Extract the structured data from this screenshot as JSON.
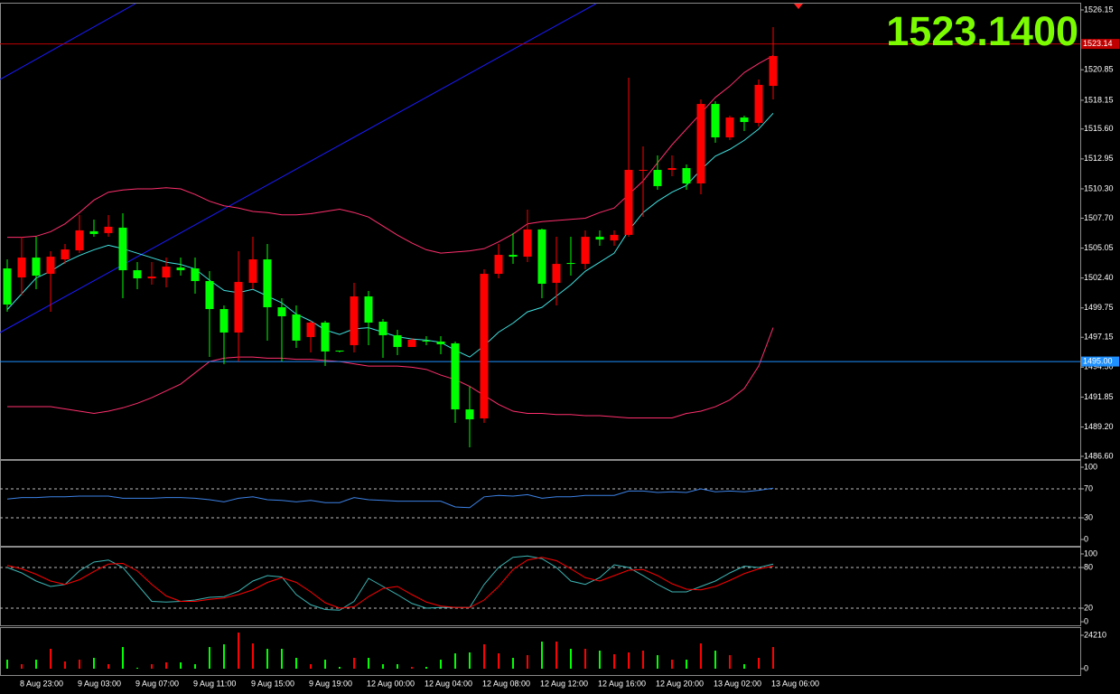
{
  "chart_data": [
    {
      "type": "candlestick",
      "categories": [
        null,
        "8 Aug 23:00",
        null,
        null,
        null,
        "9 Aug 03:00",
        null,
        null,
        null,
        "9 Aug 07:00",
        null,
        null,
        null,
        "9 Aug 11:00",
        null,
        null,
        null,
        "9 Aug 15:00",
        null,
        null,
        null,
        "9 Aug 19:00",
        null,
        null,
        null,
        "12 Aug 00:00",
        null,
        null,
        null,
        "12 Aug 04:00",
        null,
        null,
        null,
        "12 Aug 08:00",
        null,
        null,
        null,
        "12 Aug 12:00",
        null,
        null,
        null,
        "12 Aug 16:00",
        null,
        null,
        null,
        "12 Aug 20:00",
        null,
        null,
        null,
        "13 Aug 02:00",
        null,
        null,
        null,
        "13 Aug 06:00"
      ],
      "open": [
        1503.25,
        1502.45,
        1504.21,
        1502.77,
        1504.05,
        1504.85,
        1506.54,
        1506.38,
        1506.86,
        1503.09,
        1502.37,
        1502.45,
        1503.33,
        1503.25,
        1502.13,
        1499.65,
        1497.57,
        1501.97,
        1504.05,
        1499.81,
        1499.17,
        1497.17,
        1498.45,
        1495.97,
        1496.45,
        1500.77,
        1498.53,
        1497.33,
        1496.29,
        1496.85,
        1496.77,
        1496.61,
        1490.76,
        1489.96,
        1502.77,
        1504.45,
        1504.29,
        1506.7,
        1501.97,
        1503.73,
        1503.65,
        1506.05,
        1505.73,
        1506.22,
        1511.9,
        1511.98,
        1511.98,
        1512.14,
        1510.78,
        1517.82,
        1514.86,
        1516.62,
        1516.14,
        1519.42
      ],
      "high": [
        1504.05,
        1506.05,
        1506.05,
        1504.77,
        1505.41,
        1507.98,
        1507.58,
        1507.98,
        1508.14,
        1503.81,
        1503.81,
        1504.21,
        1504.21,
        1504.21,
        1503.01,
        1499.97,
        1504.77,
        1506.05,
        1505.41,
        1500.61,
        1499.97,
        1498.61,
        1498.61,
        1495.97,
        1501.97,
        1501.25,
        1498.77,
        1497.81,
        1497.09,
        1497.25,
        1497.25,
        1496.77,
        1492.77,
        1503.17,
        1505.41,
        1506.38,
        1508.46,
        1506.78,
        1506.05,
        1506.05,
        1506.62,
        1506.62,
        1506.62,
        1520.15,
        1514.06,
        1513.26,
        1513.26,
        1512.46,
        1518.22,
        1518.06,
        1516.78,
        1516.78,
        1519.99,
        1524.63
      ],
      "low": [
        1499.41,
        1500.85,
        1501.41,
        1499.41,
        1503.65,
        1504.61,
        1506.05,
        1506.05,
        1500.61,
        1501.41,
        1501.81,
        1501.57,
        1502.61,
        1501.01,
        1495.41,
        1494.77,
        1495.01,
        1501.41,
        1496.85,
        1495.01,
        1496.21,
        1495.81,
        1494.61,
        1495.81,
        1495.81,
        1496.45,
        1495.33,
        1495.57,
        1496.45,
        1496.45,
        1495.65,
        1489.56,
        1487.4,
        1489.56,
        1502.37,
        1503.65,
        1503.81,
        1500.61,
        1499.97,
        1502.61,
        1503.17,
        1505.25,
        1505.25,
        1506.05,
        1507.82,
        1510.22,
        1511.42,
        1510.22,
        1509.82,
        1514.38,
        1514.62,
        1515.42,
        1515.82,
        1518.22
      ],
      "close": [
        1500.05,
        1504.21,
        1502.61,
        1504.29,
        1504.93,
        1506.62,
        1506.3,
        1506.94,
        1503.09,
        1502.37,
        1502.53,
        1503.41,
        1503.09,
        1502.13,
        1499.65,
        1497.57,
        1502.05,
        1504.05,
        1499.81,
        1499.01,
        1496.85,
        1498.45,
        1495.89,
        1495.89,
        1500.77,
        1498.45,
        1497.33,
        1496.29,
        1496.93,
        1496.77,
        1496.53,
        1490.76,
        1489.88,
        1502.77,
        1504.45,
        1504.29,
        1506.7,
        1501.89,
        1503.65,
        1503.65,
        1506.05,
        1505.81,
        1506.22,
        1511.98,
        1511.98,
        1510.54,
        1512.14,
        1510.78,
        1517.82,
        1514.86,
        1516.62,
        1516.22,
        1519.51,
        1522.07
      ],
      "up_color": "#ff0000",
      "down_color": "#00ff00",
      "overlays": [
        {
          "color": "#ff2f6e",
          "values": [
            1506.0,
            1506.0,
            1506.1,
            1506.5,
            1507.2,
            1508.2,
            1509.3,
            1510.0,
            1510.2,
            1510.3,
            1510.3,
            1510.4,
            1510.3,
            1509.8,
            1509.2,
            1508.8,
            1508.6,
            1508.3,
            1508.2,
            1508.0,
            1508.0,
            1508.1,
            1508.3,
            1508.5,
            1508.2,
            1507.8,
            1507.0,
            1506.2,
            1505.5,
            1504.9,
            1504.6,
            1504.7,
            1504.8,
            1505.0,
            1505.6,
            1506.3,
            1507.2,
            1507.4,
            1507.5,
            1507.6,
            1507.7,
            1508.2,
            1508.6,
            1509.8,
            1511.0,
            1512.6,
            1514.2,
            1515.6,
            1517.0,
            1518.4,
            1519.4,
            1520.6,
            1521.4,
            1522.1
          ]
        },
        {
          "color": "#ff2f6e",
          "values": [
            1491.0,
            1491.0,
            1491.0,
            1491.0,
            1490.8,
            1490.6,
            1490.4,
            1490.6,
            1490.9,
            1491.3,
            1491.8,
            1492.4,
            1493.0,
            1494.0,
            1495.0,
            1495.3,
            1495.4,
            1495.4,
            1495.3,
            1495.3,
            1495.2,
            1495.2,
            1495.1,
            1495.0,
            1494.8,
            1494.6,
            1494.6,
            1494.6,
            1494.5,
            1494.3,
            1493.8,
            1493.4,
            1492.8,
            1492.0,
            1491.2,
            1490.6,
            1490.4,
            1490.4,
            1490.3,
            1490.3,
            1490.2,
            1490.2,
            1490.1,
            1490.0,
            1490.0,
            1490.0,
            1490.0,
            1490.4,
            1490.6,
            1491.0,
            1491.6,
            1492.6,
            1494.6,
            1498.0
          ]
        },
        {
          "color": "#40e0e0",
          "values": [
            1499.6,
            1501.0,
            1502.4,
            1503.0,
            1503.8,
            1504.4,
            1504.9,
            1505.3,
            1505.0,
            1504.6,
            1504.2,
            1503.8,
            1503.6,
            1503.2,
            1502.2,
            1501.3,
            1501.1,
            1501.4,
            1500.8,
            1500.2,
            1499.2,
            1498.6,
            1497.8,
            1497.4,
            1497.9,
            1498.0,
            1497.6,
            1497.2,
            1497.0,
            1496.9,
            1496.7,
            1496.0,
            1495.4,
            1496.4,
            1497.6,
            1498.4,
            1499.4,
            1499.8,
            1500.8,
            1501.8,
            1503.0,
            1503.8,
            1504.6,
            1506.6,
            1508.2,
            1509.2,
            1510.0,
            1510.6,
            1512.0,
            1513.2,
            1513.8,
            1514.6,
            1515.6,
            1517.0
          ]
        }
      ],
      "lines": [
        {
          "value": 1523.14,
          "label": "1523.14",
          "color": "#c00000"
        },
        {
          "value": 1495,
          "label": "1495.00",
          "color": "#1e90ff"
        }
      ],
      "price_display": "1523.1400",
      "ylim": [
        1486.36,
        1526.71
      ],
      "yticks": [
        1526.15,
        1520.85,
        1518.15,
        {
          "value": 1515.6,
          "label": "1515.60"
        },
        1512.95,
        {
          "value": 1510.3,
          "label": "1510.30"
        },
        {
          "value": 1507.7,
          "label": "1507.70"
        },
        1505.05,
        {
          "value": 1502.4,
          "label": "1502.40"
        },
        1499.75,
        1497.15,
        {
          "value": 1494.5,
          "label": "1494.50"
        },
        1491.85,
        {
          "value": 1489.2,
          "label": "1489.20"
        },
        {
          "value": 1486.6,
          "label": "1486.60"
        }
      ]
    },
    {
      "type": "line",
      "series": [
        {
          "color": "#3c82e6",
          "values": [
            56,
            58,
            58,
            59,
            59,
            60,
            60,
            60,
            57,
            57,
            57,
            58,
            58,
            57,
            55,
            52,
            57,
            59,
            55,
            54,
            52,
            54,
            51,
            51,
            58,
            55,
            54,
            53,
            53,
            53,
            53,
            45,
            44,
            59,
            61,
            60,
            62,
            57,
            59,
            59,
            61,
            61,
            61,
            67,
            67,
            65,
            66,
            65,
            70,
            66,
            67,
            66,
            68,
            71
          ]
        }
      ],
      "levels": [
        70,
        30
      ],
      "ylim": [
        -8.75,
        108.75
      ],
      "yticks": [
        100,
        70,
        30,
        0
      ]
    },
    {
      "type": "line",
      "series": [
        {
          "color": "#3cb4b4",
          "values": [
            80,
            72,
            60,
            52,
            55,
            75,
            88,
            91,
            80,
            55,
            30,
            29,
            30,
            32,
            36,
            37,
            45,
            60,
            68,
            66,
            40,
            25,
            18,
            17,
            30,
            64,
            52,
            40,
            27,
            20,
            21,
            21,
            21,
            55,
            80,
            95,
            97,
            93,
            80,
            60,
            55,
            65,
            84,
            80,
            68,
            55,
            44,
            44,
            52,
            60,
            72,
            82,
            80,
            85
          ]
        },
        {
          "color": "#ff0000",
          "values": [
            83,
            78,
            70,
            60,
            55,
            62,
            74,
            85,
            86,
            75,
            55,
            38,
            30,
            30,
            33,
            35,
            40,
            47,
            58,
            65,
            58,
            44,
            28,
            20,
            22,
            37,
            49,
            52,
            40,
            29,
            23,
            21,
            21,
            32,
            52,
            77,
            91,
            95,
            90,
            78,
            65,
            60,
            68,
            76,
            77,
            68,
            56,
            48,
            47,
            52,
            61,
            71,
            78,
            82
          ]
        }
      ],
      "levels": [
        80,
        20
      ],
      "ylim": [
        -5.3,
        109.3
      ],
      "yticks": [
        100,
        80,
        20,
        0
      ]
    },
    {
      "type": "bar",
      "values": [
        6540,
        3270,
        6540,
        14390,
        5230,
        6540,
        7850,
        3270,
        15700,
        700,
        3270,
        4580,
        4580,
        3270,
        15700,
        17660,
        26160,
        18310,
        14390,
        14390,
        7850,
        3270,
        6540,
        1310,
        7850,
        7850,
        3270,
        3270,
        1310,
        1310,
        6540,
        11120,
        11770,
        17660,
        11120,
        7850,
        9810,
        19620,
        19620,
        14390,
        14390,
        13080,
        10460,
        11770,
        13080,
        9810,
        6540,
        6540,
        18310,
        13080,
        9810,
        3270,
        7850,
        15700
      ],
      "ylim": [
        -3927,
        28788
      ],
      "yticks": [
        0,
        24210
      ]
    }
  ]
}
